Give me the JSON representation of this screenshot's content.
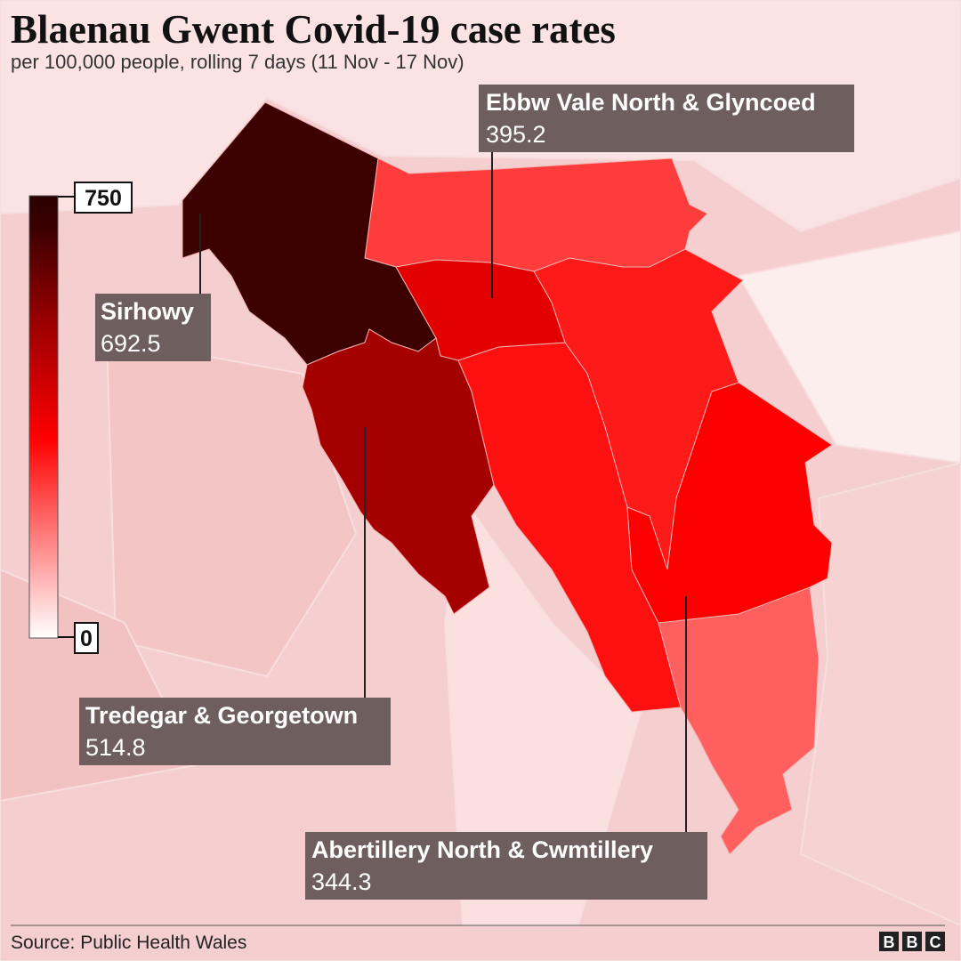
{
  "title": "Blaenau Gwent Covid-19 case rates",
  "subtitle": "per 100,000 people, rolling 7 days (11 Nov - 17 Nov)",
  "legend": {
    "max": 750,
    "min": 0
  },
  "areas": [
    {
      "name": "Ebbw Vale North & Glyncoed",
      "value": 395.2
    },
    {
      "name": "Sirhowy",
      "value": 692.5
    },
    {
      "name": "Tredegar & Georgetown",
      "value": 514.8
    },
    {
      "name": "Abertillery North & Cwmtillery",
      "value": 344.3
    }
  ],
  "source": "Source: Public Health Wales",
  "logo": [
    "B",
    "B",
    "C"
  ]
}
